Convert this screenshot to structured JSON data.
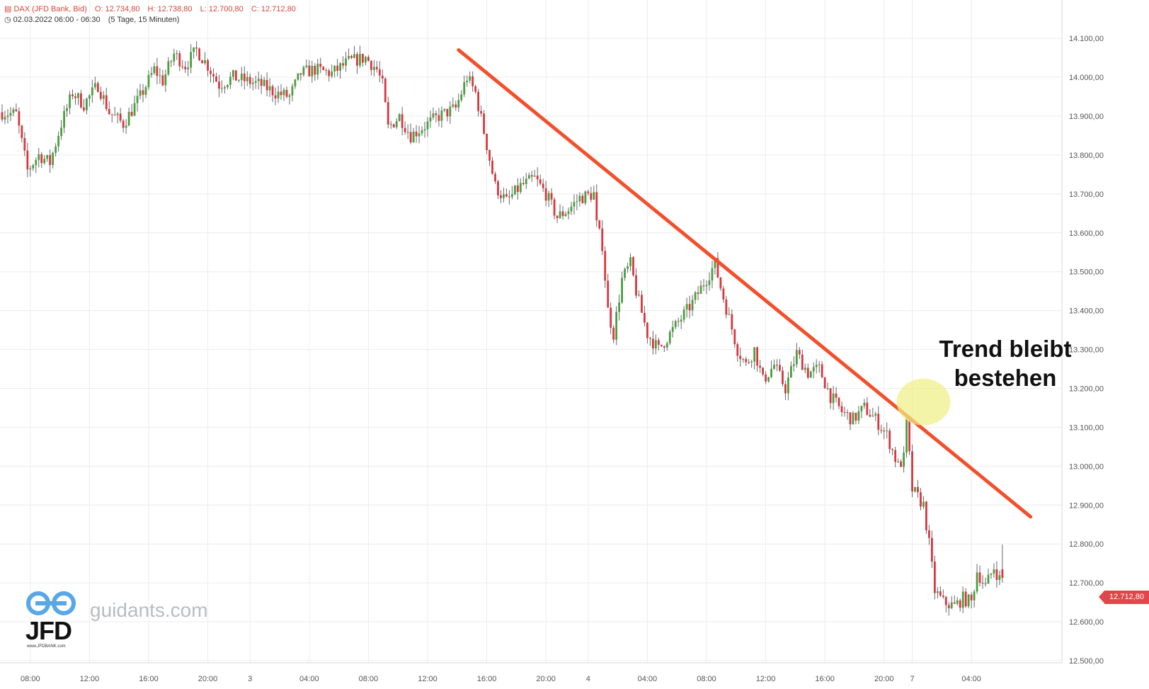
{
  "header": {
    "line1_icon": "chart-icon",
    "instrument": "DAX (JFD Bank, Bid)",
    "ohlc": [
      "O: 12.734,80",
      "H: 12.738,80",
      "L: 12.700,80",
      "C: 12.712,80"
    ],
    "line2_icon": "clock-icon",
    "time": "02.03.2022 06:00 - 06:30",
    "period": "(5 Tage, 15 Minuten)"
  },
  "logo": {
    "text": "guidants.com",
    "brand": "JFD",
    "url": "www.JFDBANK.com"
  },
  "annotation": {
    "line1": "Trend bleibt",
    "line2": "bestehen"
  },
  "last_price_label": "12.712,80",
  "colors": {
    "up": "#4a9e3f",
    "down": "#d9363e",
    "trendline": "#f2502c",
    "highlight": "#eef083",
    "grid": "#ececec"
  },
  "chart_data": {
    "type": "candlestick",
    "title": "",
    "ylim": [
      12500,
      14150
    ],
    "y_ticks": [
      {
        "value": 12500,
        "label": "12.500,00"
      },
      {
        "value": 12600,
        "label": "12.600,00"
      },
      {
        "value": 12700,
        "label": "12.700,00"
      },
      {
        "value": 12800,
        "label": "12.800,00"
      },
      {
        "value": 12900,
        "label": "12.900,00"
      },
      {
        "value": 13000,
        "label": "13.000,00"
      },
      {
        "value": 13100,
        "label": "13.100,00"
      },
      {
        "value": 13200,
        "label": "13.200,00"
      },
      {
        "value": 13300,
        "label": "13.300,00"
      },
      {
        "value": 13400,
        "label": "13.400,00"
      },
      {
        "value": 13500,
        "label": "13.500,00"
      },
      {
        "value": 13600,
        "label": "13.600,00"
      },
      {
        "value": 13700,
        "label": "13.700,00"
      },
      {
        "value": 13800,
        "label": "13.800,00"
      },
      {
        "value": 13900,
        "label": "13.900,00"
      },
      {
        "value": 14000,
        "label": "14.000,00"
      },
      {
        "value": 14100,
        "label": "14.100,00"
      }
    ],
    "x_ticks": [
      {
        "index": 10,
        "label": "08:00"
      },
      {
        "index": 31,
        "label": "12:00"
      },
      {
        "index": 52,
        "label": "16:00"
      },
      {
        "index": 73,
        "label": "20:00"
      },
      {
        "index": 88,
        "label": "3"
      },
      {
        "index": 109,
        "label": "04:00"
      },
      {
        "index": 130,
        "label": "08:00"
      },
      {
        "index": 151,
        "label": "12:00"
      },
      {
        "index": 172,
        "label": "16:00"
      },
      {
        "index": 193,
        "label": "20:00"
      },
      {
        "index": 208,
        "label": "4"
      },
      {
        "index": 229,
        "label": "04:00"
      },
      {
        "index": 250,
        "label": "08:00"
      },
      {
        "index": 271,
        "label": "12:00"
      },
      {
        "index": 292,
        "label": "16:00"
      },
      {
        "index": 313,
        "label": "20:00"
      },
      {
        "index": 323,
        "label": "7"
      },
      {
        "index": 344,
        "label": "04:00"
      }
    ],
    "candle_count": 356,
    "anchors": [
      [
        0,
        13910
      ],
      [
        6,
        13905
      ],
      [
        10,
        13760
      ],
      [
        14,
        13800
      ],
      [
        18,
        13780
      ],
      [
        22,
        13880
      ],
      [
        26,
        13960
      ],
      [
        30,
        13930
      ],
      [
        35,
        13980
      ],
      [
        39,
        13910
      ],
      [
        44,
        13880
      ],
      [
        50,
        13950
      ],
      [
        55,
        14020
      ],
      [
        58,
        13990
      ],
      [
        62,
        14060
      ],
      [
        66,
        14030
      ],
      [
        70,
        14070
      ],
      [
        74,
        14030
      ],
      [
        78,
        13980
      ],
      [
        83,
        14000
      ],
      [
        88,
        13990
      ],
      [
        93,
        13980
      ],
      [
        98,
        13960
      ],
      [
        103,
        13950
      ],
      [
        107,
        14010
      ],
      [
        112,
        14020
      ],
      [
        118,
        14010
      ],
      [
        124,
        14040
      ],
      [
        130,
        14050
      ],
      [
        134,
        14020
      ],
      [
        136,
        13980
      ],
      [
        138,
        13870
      ],
      [
        142,
        13900
      ],
      [
        146,
        13850
      ],
      [
        150,
        13870
      ],
      [
        156,
        13900
      ],
      [
        162,
        13920
      ],
      [
        166,
        14000
      ],
      [
        169,
        13960
      ],
      [
        172,
        13860
      ],
      [
        176,
        13720
      ],
      [
        180,
        13680
      ],
      [
        185,
        13720
      ],
      [
        190,
        13740
      ],
      [
        194,
        13700
      ],
      [
        198,
        13640
      ],
      [
        202,
        13660
      ],
      [
        206,
        13690
      ],
      [
        211,
        13700
      ],
      [
        212,
        13620
      ],
      [
        214,
        13570
      ],
      [
        216,
        13400
      ],
      [
        218,
        13340
      ],
      [
        221,
        13480
      ],
      [
        224,
        13520
      ],
      [
        226,
        13450
      ],
      [
        230,
        13340
      ],
      [
        234,
        13300
      ],
      [
        238,
        13340
      ],
      [
        242,
        13380
      ],
      [
        246,
        13420
      ],
      [
        250,
        13470
      ],
      [
        254,
        13520
      ],
      [
        256,
        13460
      ],
      [
        259,
        13380
      ],
      [
        262,
        13300
      ],
      [
        265,
        13260
      ],
      [
        268,
        13300
      ],
      [
        271,
        13220
      ],
      [
        275,
        13260
      ],
      [
        279,
        13200
      ],
      [
        283,
        13290
      ],
      [
        287,
        13240
      ],
      [
        291,
        13250
      ],
      [
        295,
        13180
      ],
      [
        299,
        13140
      ],
      [
        303,
        13120
      ],
      [
        307,
        13150
      ],
      [
        311,
        13120
      ],
      [
        315,
        13080
      ],
      [
        317,
        13040
      ],
      [
        319,
        13000
      ],
      [
        321,
        13020
      ],
      [
        322,
        13110
      ],
      [
        324,
        12940
      ],
      [
        326,
        12920
      ],
      [
        328,
        12900
      ],
      [
        330,
        12800
      ],
      [
        332,
        12680
      ],
      [
        335,
        12650
      ],
      [
        339,
        12640
      ],
      [
        342,
        12660
      ],
      [
        345,
        12650
      ],
      [
        347,
        12730
      ],
      [
        350,
        12690
      ],
      [
        353,
        12740
      ],
      [
        355,
        12710
      ]
    ],
    "last": {
      "open": 12734.8,
      "high": 12738.8,
      "low": 12700.8,
      "close": 12712.8
    },
    "trendline": [
      {
        "index": 162,
        "value": 14070
      },
      {
        "index": 365,
        "value": 12870
      }
    ],
    "highlight": {
      "index": 327,
      "value": 13165
    }
  }
}
